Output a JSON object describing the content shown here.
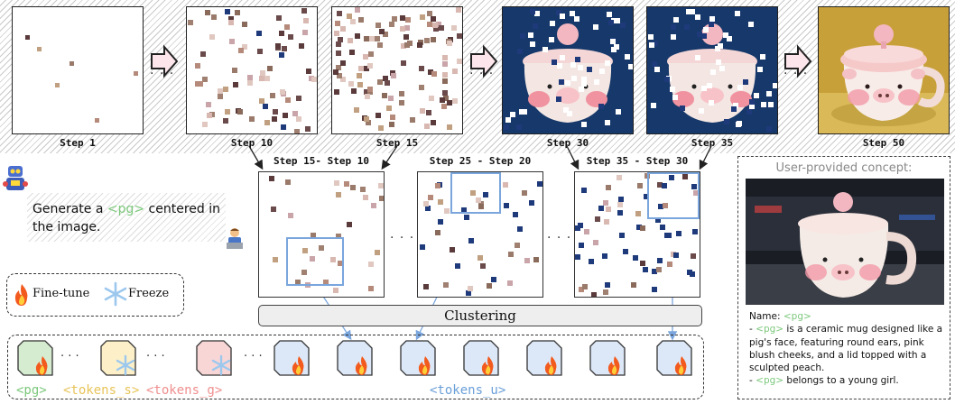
{
  "steps": {
    "top": [
      "Step 1",
      "Step 10",
      "Step 15",
      "Step 30",
      "Step 35",
      "Step 50"
    ],
    "diff": [
      "Step 15- Step 10",
      "Step 25 - Step 20",
      "Step 35 - Step 30"
    ]
  },
  "prompt": {
    "part1": "Generate a ",
    "token": "<pg>",
    "part2": " centered in the image."
  },
  "legend": {
    "finetune": "Fine-tune",
    "freeze": "Freeze"
  },
  "clustering": "Clustering",
  "token_labels": {
    "pg": "<pg>",
    "tokens_s": "<tokens_s>",
    "tokens_g": "<tokens_g>",
    "tokens_u": "<tokens_u>"
  },
  "ellipsis": "· · ·",
  "concept": {
    "title": "User-provided concept:",
    "name_label": "Name: ",
    "name_value": "<pg>",
    "desc_dash": "- ",
    "desc_token": "<pg>",
    "desc_text": " is a ceramic mug designed like a pig's face, featuring round ears, pink blush cheeks, and a lid topped with a sculpted peach.",
    "belongs_dash": "- ",
    "belongs_token": "<pg>",
    "belongs_text": " belongs to a young girl."
  },
  "colors": {
    "token_green": "#7cc87c",
    "tokens_s": "#e8c45a",
    "tokens_g": "#f08f8f",
    "tokens_u": "#6a9fd8",
    "highlight": "#7aa6dd"
  },
  "icons": [
    "robot-icon",
    "person-laptop-icon",
    "fire-icon",
    "snowflake-icon",
    "arrow-right-icon"
  ]
}
